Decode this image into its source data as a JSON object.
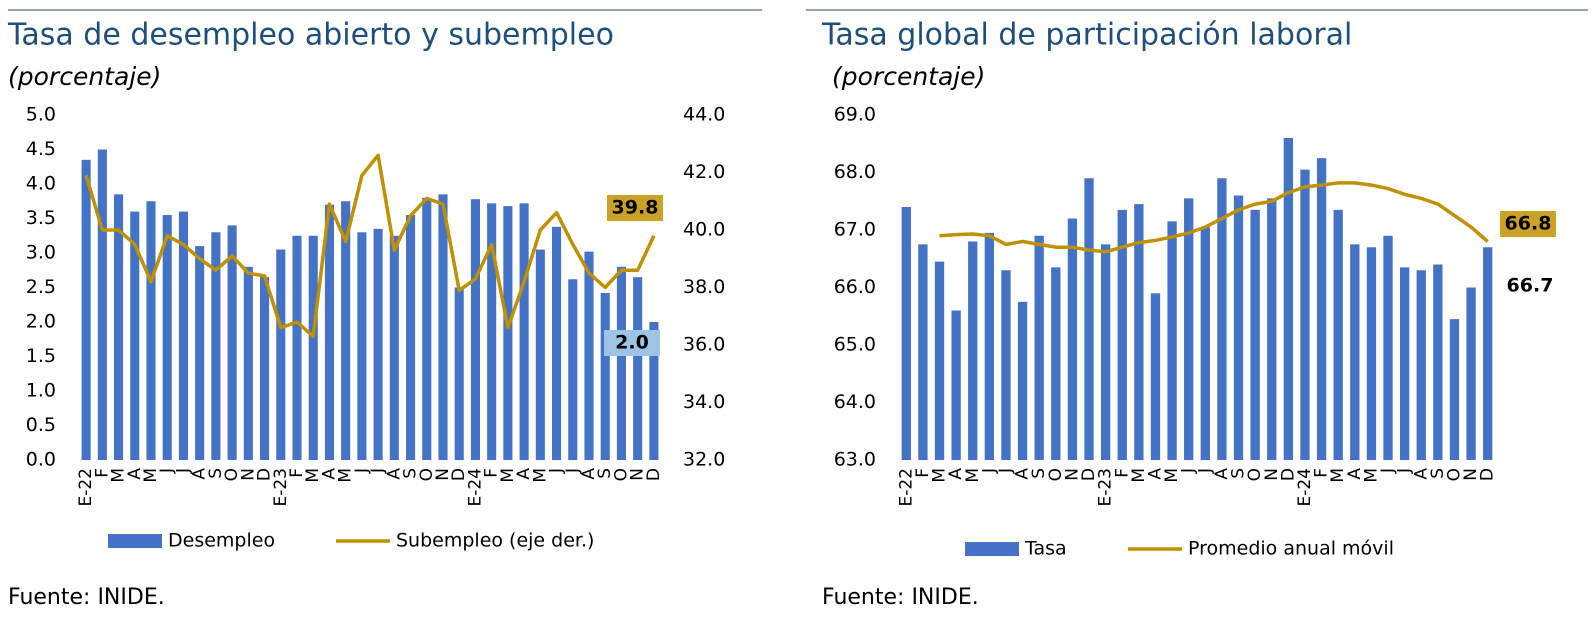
{
  "chart_data": [
    {
      "type": "bar",
      "title": "Tasa de desempleo abierto y subempleo",
      "subtitle": "(porcentaje)",
      "categories": [
        "E-22",
        "F",
        "M",
        "A",
        "M",
        "J",
        "J",
        "A",
        "S",
        "O",
        "N",
        "D",
        "E-23",
        "F",
        "M",
        "A",
        "M",
        "J",
        "J",
        "A",
        "S",
        "O",
        "N",
        "D",
        "E-24",
        "F",
        "M",
        "A",
        "M",
        "J",
        "J",
        "A",
        "S",
        "O",
        "N",
        "D"
      ],
      "series": [
        {
          "name": "Desempleo",
          "type": "bar",
          "color": "#4472c4",
          "values": [
            4.35,
            4.5,
            3.85,
            3.6,
            3.75,
            3.55,
            3.6,
            3.1,
            3.3,
            3.4,
            2.8,
            2.65,
            3.05,
            3.25,
            3.25,
            3.7,
            3.75,
            3.3,
            3.35,
            3.25,
            3.55,
            3.8,
            3.85,
            2.5,
            3.78,
            3.72,
            3.68,
            3.72,
            3.05,
            3.38,
            2.62,
            3.02,
            2.42,
            2.8,
            2.65,
            2.0
          ],
          "value_labels": [
            null,
            null,
            null,
            null,
            null,
            null,
            null,
            null,
            null,
            null,
            null,
            null,
            null,
            null,
            null,
            null,
            null,
            null,
            null,
            null,
            null,
            null,
            null,
            null,
            null,
            null,
            null,
            null,
            null,
            null,
            null,
            null,
            null,
            null,
            null,
            "2.0"
          ]
        },
        {
          "name": "Subempleo (eje der.)",
          "type": "line",
          "axis": "y2",
          "color": "#bf9000",
          "values": [
            41.9,
            40,
            40,
            39.5,
            38.2,
            39.8,
            39.5,
            39,
            38.6,
            39.1,
            38.5,
            38.4,
            36.6,
            36.8,
            36.3,
            40.9,
            39.6,
            41.9,
            42.6,
            39.3,
            40.5,
            41.1,
            40.9,
            37.9,
            38.3,
            39.5,
            36.6,
            38.2,
            40.0,
            40.6,
            39.5,
            38.5,
            38.0,
            38.6,
            38.6,
            39.8
          ],
          "value_labels": [
            null,
            null,
            null,
            null,
            null,
            null,
            null,
            null,
            null,
            null,
            null,
            null,
            null,
            null,
            null,
            null,
            null,
            null,
            null,
            null,
            null,
            null,
            null,
            null,
            null,
            null,
            null,
            null,
            null,
            null,
            null,
            null,
            null,
            null,
            null,
            "39.8"
          ]
        }
      ],
      "ylim": [
        0,
        5
      ],
      "yticks": [
        {
          "value": 0,
          "label": "0.0"
        },
        {
          "value": 0.5,
          "label": "0.5"
        },
        {
          "value": 1,
          "label": "1.0"
        },
        {
          "value": 1.5,
          "label": "1.5"
        },
        {
          "value": 2,
          "label": "2.0"
        },
        {
          "value": 2.5,
          "label": "2.5"
        },
        {
          "value": 3,
          "label": "3.0"
        },
        {
          "value": 3.5,
          "label": "3.5"
        },
        {
          "value": 4,
          "label": "4.0"
        },
        {
          "value": 4.5,
          "label": "4.5"
        },
        {
          "value": 5,
          "label": "5.0"
        }
      ],
      "y2lim": [
        32,
        44
      ],
      "y2ticks": [
        {
          "value": 32,
          "label": "32.0"
        },
        {
          "value": 34,
          "label": "34.0"
        },
        {
          "value": 36,
          "label": "36.0"
        },
        {
          "value": 38,
          "label": "38.0"
        },
        {
          "value": 40,
          "label": "40.0"
        },
        {
          "value": 42,
          "label": "42.0"
        },
        {
          "value": 44,
          "label": "44.0"
        }
      ],
      "source": "Fuente: INIDE."
    },
    {
      "type": "bar",
      "title": "Tasa global de participación laboral",
      "subtitle": "(porcentaje)",
      "categories": [
        "E-22",
        "F",
        "M",
        "A",
        "M",
        "J",
        "J",
        "A",
        "S",
        "O",
        "N",
        "D",
        "E-23",
        "F",
        "M",
        "A",
        "M",
        "J",
        "J",
        "A",
        "S",
        "O",
        "N",
        "D",
        "E-24",
        "F",
        "M",
        "A",
        "M",
        "J",
        "J",
        "A",
        "S",
        "O",
        "N",
        "D"
      ],
      "series": [
        {
          "name": "Tasa",
          "type": "bar",
          "color": "#4472c4",
          "values": [
            67.4,
            66.75,
            66.45,
            65.6,
            66.8,
            66.95,
            66.3,
            65.75,
            66.9,
            66.35,
            67.2,
            67.9,
            66.75,
            67.35,
            67.45,
            65.9,
            67.15,
            67.55,
            67.05,
            67.9,
            67.6,
            67.35,
            67.55,
            68.6,
            68.05,
            68.25,
            67.35,
            66.75,
            66.7,
            66.9,
            66.35,
            66.3,
            66.4,
            65.45,
            66.0,
            66.7
          ],
          "value_labels": [
            null,
            null,
            null,
            null,
            null,
            null,
            null,
            null,
            null,
            null,
            null,
            null,
            null,
            null,
            null,
            null,
            null,
            null,
            null,
            null,
            null,
            null,
            null,
            null,
            null,
            null,
            null,
            null,
            null,
            null,
            null,
            null,
            null,
            null,
            null,
            "66.7"
          ]
        },
        {
          "name": "Promedio anual móvil",
          "type": "line",
          "color": "#bf9000",
          "values": [
            null,
            null,
            66.9,
            66.92,
            66.93,
            66.9,
            66.75,
            66.8,
            66.75,
            66.7,
            66.7,
            66.65,
            66.62,
            66.7,
            66.78,
            66.82,
            66.88,
            66.95,
            67.05,
            67.2,
            67.35,
            67.45,
            67.5,
            67.65,
            67.75,
            67.78,
            67.82,
            67.82,
            67.78,
            67.72,
            67.62,
            67.55,
            67.45,
            67.25,
            67.05,
            66.8
          ],
          "value_labels": [
            null,
            null,
            null,
            null,
            null,
            null,
            null,
            null,
            null,
            null,
            null,
            null,
            null,
            null,
            null,
            null,
            null,
            null,
            null,
            null,
            null,
            null,
            null,
            null,
            null,
            null,
            null,
            null,
            null,
            null,
            null,
            null,
            null,
            null,
            null,
            "66.8"
          ]
        }
      ],
      "ylim": [
        63,
        69
      ],
      "yticks": [
        {
          "value": 63,
          "label": "63.0"
        },
        {
          "value": 64,
          "label": "64.0"
        },
        {
          "value": 65,
          "label": "65.0"
        },
        {
          "value": 66,
          "label": "66.0"
        },
        {
          "value": 67,
          "label": "67.0"
        },
        {
          "value": 68,
          "label": "68.0"
        },
        {
          "value": 69,
          "label": "69.0"
        }
      ],
      "source": "Fuente: INIDE."
    }
  ]
}
